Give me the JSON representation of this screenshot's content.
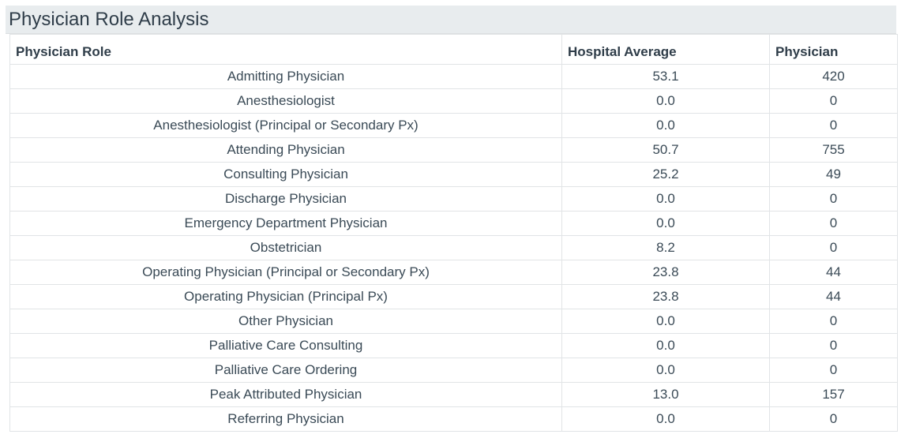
{
  "panel": {
    "title": "Physician Role Analysis"
  },
  "table": {
    "headers": {
      "role": "Physician Role",
      "hospital_average": "Hospital Average",
      "physician": "Physician"
    },
    "rows": [
      {
        "role": "Admitting Physician",
        "hospital_average": "53.1",
        "physician": "420"
      },
      {
        "role": "Anesthesiologist",
        "hospital_average": "0.0",
        "physician": "0"
      },
      {
        "role": "Anesthesiologist (Principal or Secondary Px)",
        "hospital_average": "0.0",
        "physician": "0"
      },
      {
        "role": "Attending Physician",
        "hospital_average": "50.7",
        "physician": "755"
      },
      {
        "role": "Consulting Physician",
        "hospital_average": "25.2",
        "physician": "49"
      },
      {
        "role": "Discharge Physician",
        "hospital_average": "0.0",
        "physician": "0"
      },
      {
        "role": "Emergency Department Physician",
        "hospital_average": "0.0",
        "physician": "0"
      },
      {
        "role": "Obstetrician",
        "hospital_average": "8.2",
        "physician": "0"
      },
      {
        "role": "Operating Physician (Principal or Secondary Px)",
        "hospital_average": "23.8",
        "physician": "44"
      },
      {
        "role": "Operating Physician (Principal Px)",
        "hospital_average": "23.8",
        "physician": "44"
      },
      {
        "role": "Other Physician",
        "hospital_average": "0.0",
        "physician": "0"
      },
      {
        "role": "Palliative Care Consulting",
        "hospital_average": "0.0",
        "physician": "0"
      },
      {
        "role": "Palliative Care Ordering",
        "hospital_average": "0.0",
        "physician": "0"
      },
      {
        "role": "Peak Attributed Physician",
        "hospital_average": "13.0",
        "physician": "157"
      },
      {
        "role": "Referring Physician",
        "hospital_average": "0.0",
        "physician": "0"
      }
    ]
  }
}
